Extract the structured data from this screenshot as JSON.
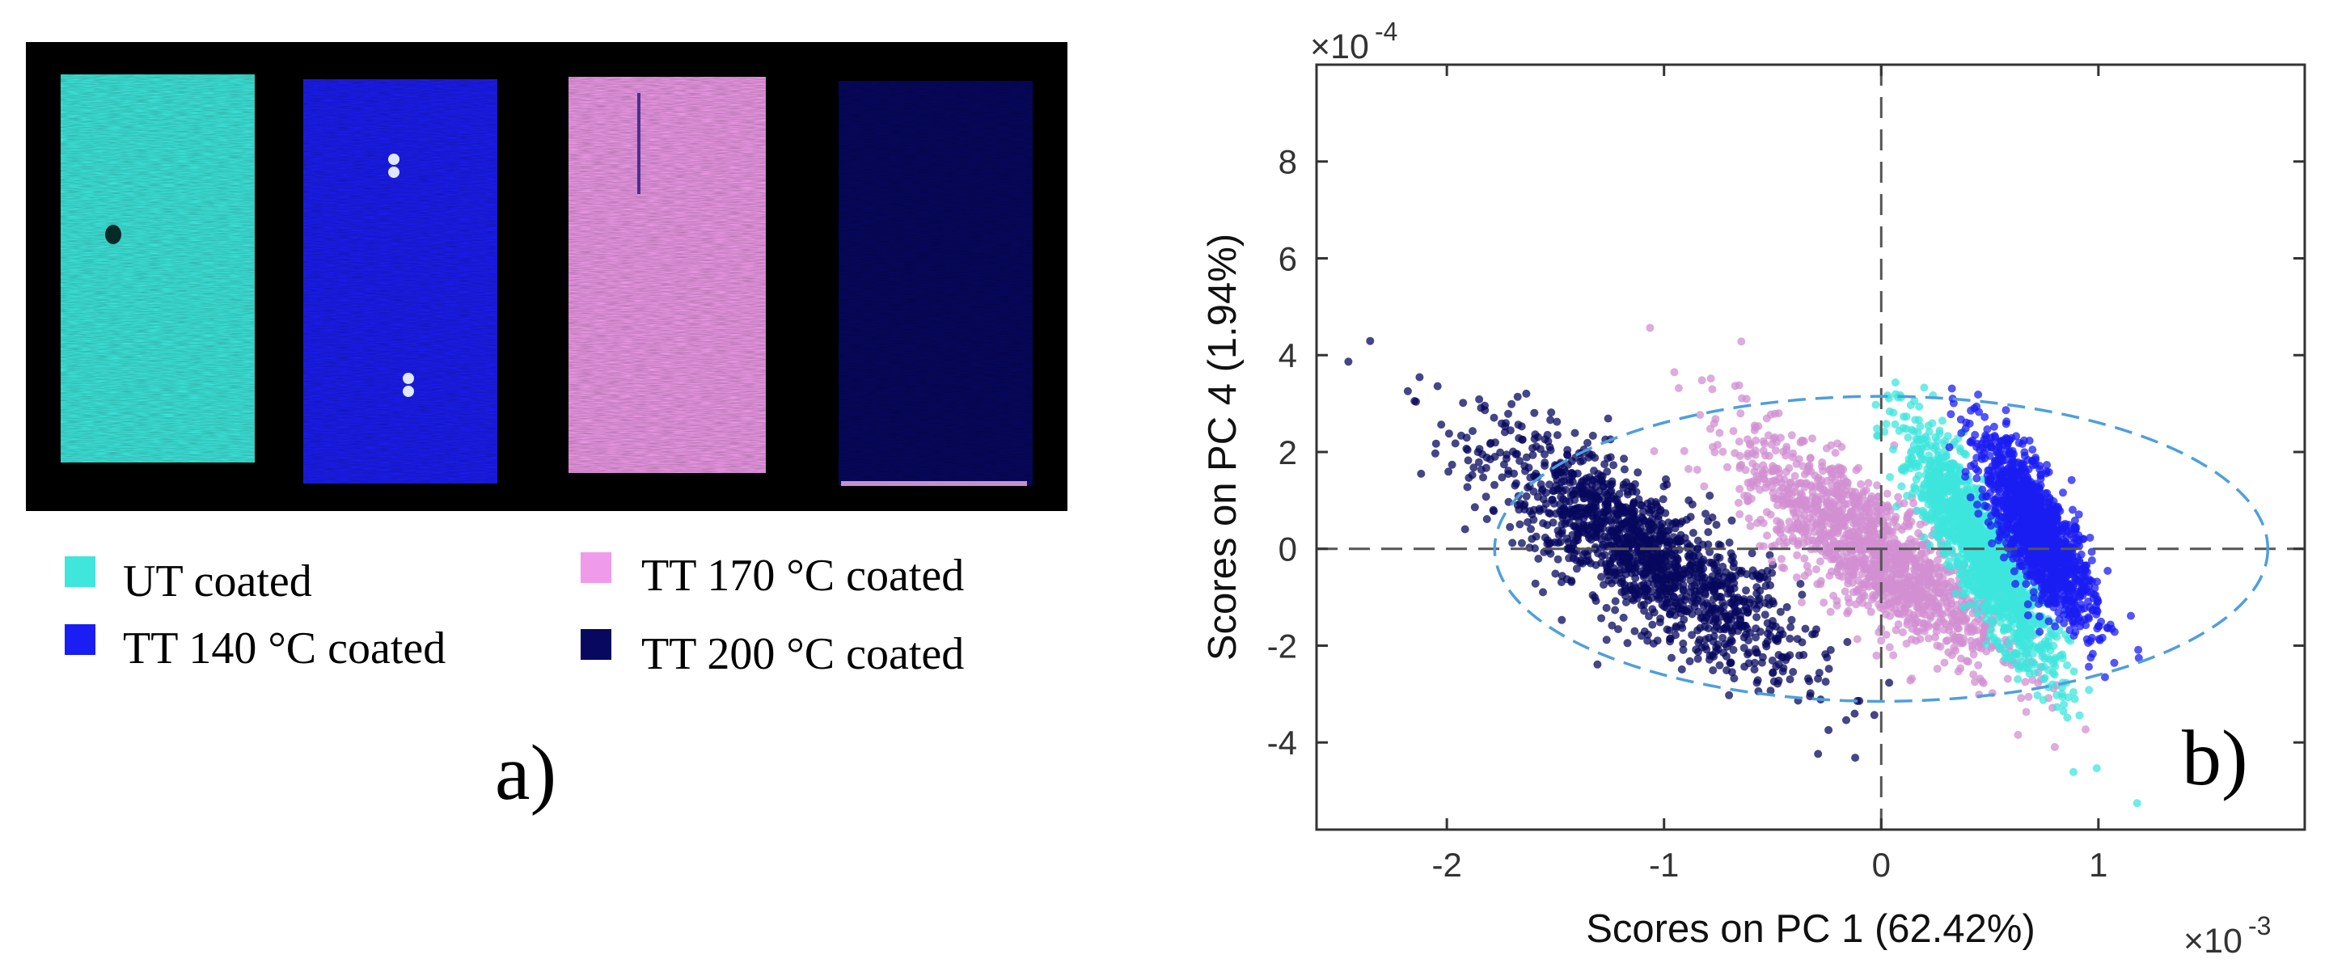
{
  "panel_a": {
    "label": "a)",
    "legend": [
      {
        "label": "UT coated",
        "color": "#3ee6dc"
      },
      {
        "label": "TT 140 °C coated",
        "color": "#1b1ef2"
      },
      {
        "label": "TT 170 °C coated",
        "color": "#f09bea"
      },
      {
        "label": "TT 200 °C coated",
        "color": "#07085e"
      }
    ]
  },
  "chart_data": {
    "type": "scatter",
    "panel_label": "b)",
    "xlabel": "Scores on PC 1 (62.42%)",
    "ylabel": "Scores on PC 4 (1.94%)",
    "x_multiplier": "×10",
    "x_exponent": "-3",
    "y_multiplier": "×10",
    "y_exponent": "-4",
    "xlim": [
      -2.6,
      1.95
    ],
    "ylim": [
      -5.8,
      10
    ],
    "xticks": [
      -2,
      -1,
      0,
      1
    ],
    "yticks": [
      -4,
      -2,
      0,
      2,
      4,
      6,
      8
    ],
    "grid": false,
    "reference_lines": {
      "x": 0,
      "y": 0,
      "style": "dashed"
    },
    "confidence_ellipse": {
      "center_x": 0.0,
      "center_y": 0.0,
      "semi_axis_x": 1.78,
      "semi_axis_y": 3.15,
      "style": "dashed",
      "color": "#4f9fdc"
    },
    "series": [
      {
        "name": "TT 200 °C coated",
        "color": "#07085e",
        "center_x": -1.1,
        "center_y": -0.1,
        "spread_x": 0.36,
        "spread_y": 1.25,
        "correlation": -0.82
      },
      {
        "name": "TT 170 °C coated",
        "color": "#d28fd2",
        "center_x": -0.05,
        "center_y": 0.0,
        "spread_x": 0.3,
        "spread_y": 1.15,
        "correlation": -0.8
      },
      {
        "name": "UT coated",
        "color": "#3ee6dc",
        "center_x": 0.45,
        "center_y": 0.0,
        "spread_x": 0.17,
        "spread_y": 1.25,
        "correlation": -0.88
      },
      {
        "name": "TT 140 °C coated",
        "color": "#1b1ef2",
        "center_x": 0.72,
        "center_y": 0.35,
        "spread_x": 0.13,
        "spread_y": 0.95,
        "correlation": -0.78
      }
    ]
  }
}
